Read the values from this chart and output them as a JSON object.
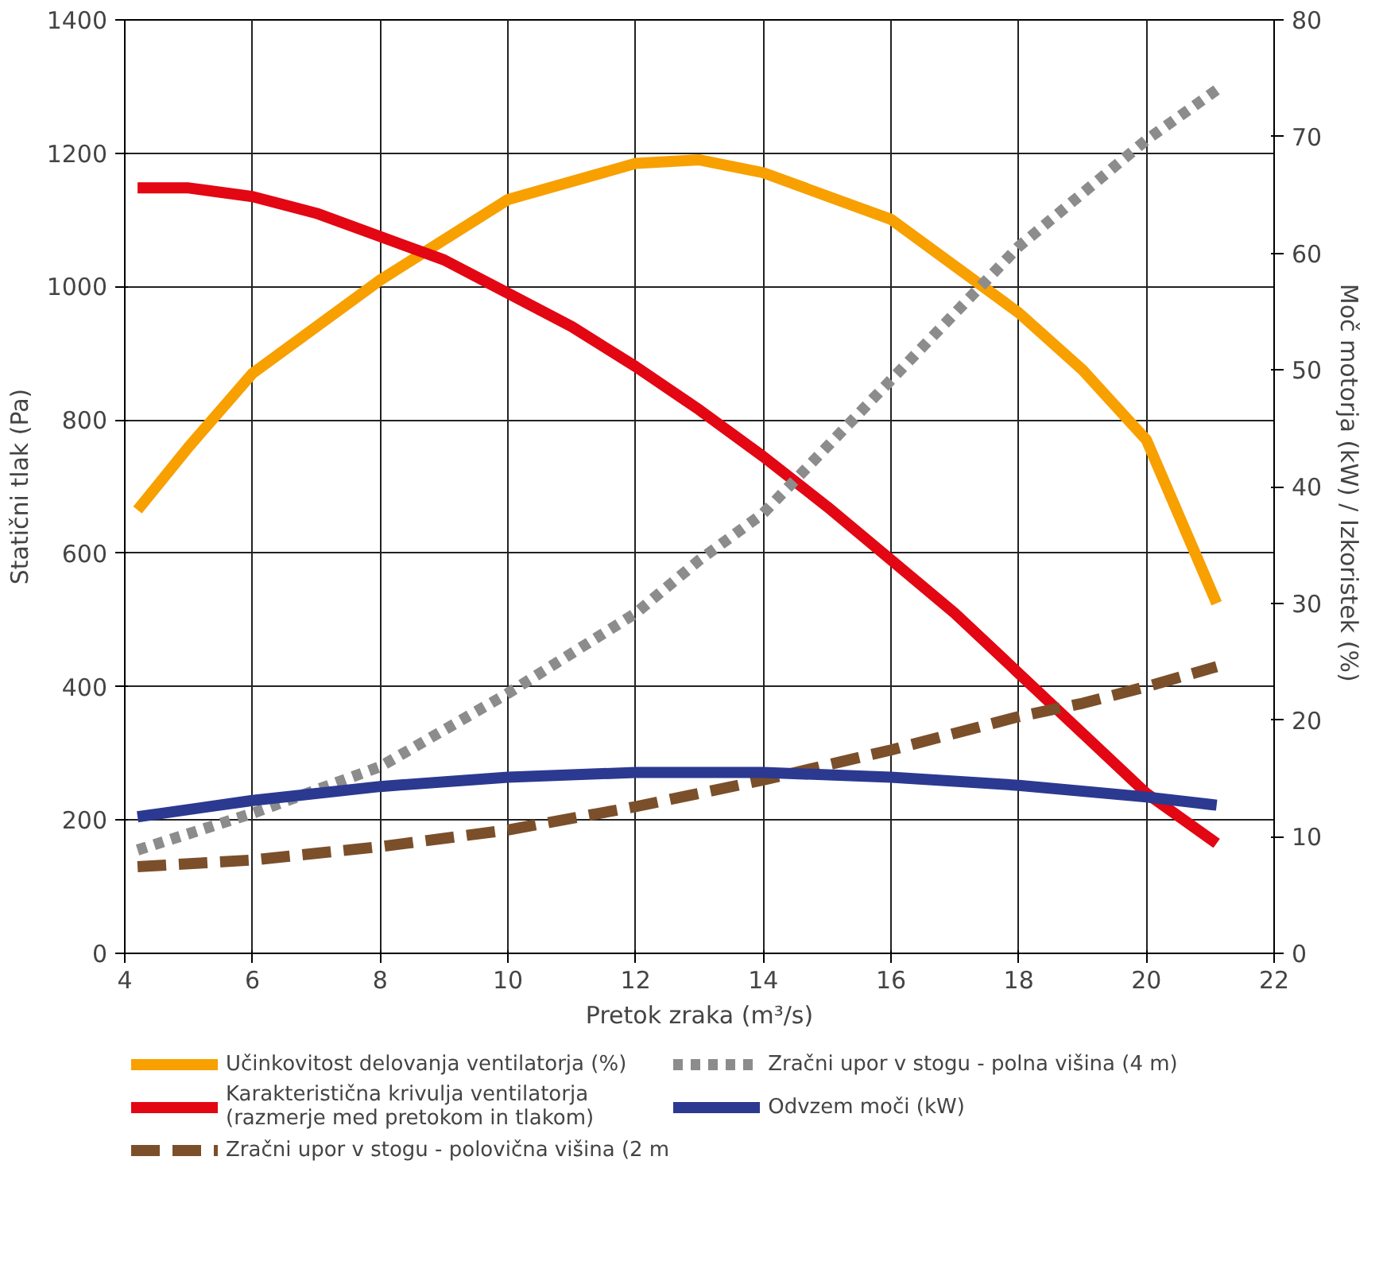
{
  "chart_data": {
    "type": "line",
    "xlabel": "Pretok zraka (m³/s)",
    "ylabel": "Statični tlak (Pa)",
    "y2label": "Moč motorja (kW) / Izkoristek  (%)",
    "xlim": [
      4,
      22
    ],
    "xticks": [
      4,
      6,
      8,
      10,
      12,
      14,
      16,
      18,
      20,
      22
    ],
    "ylim": [
      0,
      1400
    ],
    "yticks": [
      0,
      200,
      400,
      600,
      800,
      1000,
      1200,
      1400
    ],
    "y2lim": [
      0,
      80
    ],
    "y2ticks": [
      0,
      10,
      20,
      30,
      40,
      50,
      60,
      70,
      80
    ],
    "grid": true,
    "legend": "bottom",
    "series": [
      {
        "name": "Učinkovitost delovanja ventilatorja (%)",
        "color": "#f7a000",
        "axis": "y2",
        "line_style": "solid",
        "x": [
          4.2,
          5,
          6,
          8,
          10,
          12,
          13,
          14,
          16,
          18,
          19,
          20,
          21.1
        ],
        "values": [
          38,
          43.4,
          49.7,
          57.7,
          64.6,
          67.7,
          68,
          66.9,
          62.9,
          54.9,
          50,
          44,
          30
        ]
      },
      {
        "name": "Karakteristična krivulja ventilatorja\n(razmerje med pretokom in tlakom)",
        "color": "#e30613",
        "line_style": "solid",
        "x": [
          4.2,
          5,
          6,
          7,
          8,
          9,
          10,
          11,
          12,
          13,
          14,
          15,
          16,
          17,
          18,
          19,
          20,
          21.1
        ],
        "values": [
          1148,
          1148,
          1135,
          1110,
          1075,
          1040,
          990,
          940,
          880,
          815,
          745,
          670,
          590,
          510,
          420,
          330,
          240,
          165
        ]
      },
      {
        "name": "Zračni upor v stogu - polovična višina (2 m",
        "color": "#7b4f2a",
        "line_style": "dashed",
        "x": [
          4.2,
          6,
          8,
          10,
          12,
          14,
          16,
          18,
          19,
          20,
          21.1
        ],
        "values": [
          130,
          140,
          160,
          185,
          220,
          260,
          305,
          355,
          375,
          400,
          430
        ]
      },
      {
        "name": "Zračni upor v stogu - polna višina (4 m)",
        "color": "#8c8c8c",
        "line_style": "dotted",
        "x": [
          4.2,
          6,
          8,
          10,
          12,
          13,
          14,
          15,
          16,
          18,
          20,
          21.1
        ],
        "values": [
          155,
          210,
          280,
          390,
          510,
          590,
          660,
          760,
          860,
          1060,
          1220,
          1295
        ]
      },
      {
        "name": "Odvzem moči (kW)",
        "color": "#2b3990",
        "axis": "y2",
        "line_style": "solid",
        "x": [
          4.2,
          6,
          8,
          10,
          12,
          14,
          16,
          18,
          20,
          21.1
        ],
        "values": [
          11.7,
          13.1,
          14.3,
          15.1,
          15.5,
          15.5,
          15.1,
          14.4,
          13.4,
          12.7
        ]
      }
    ]
  }
}
